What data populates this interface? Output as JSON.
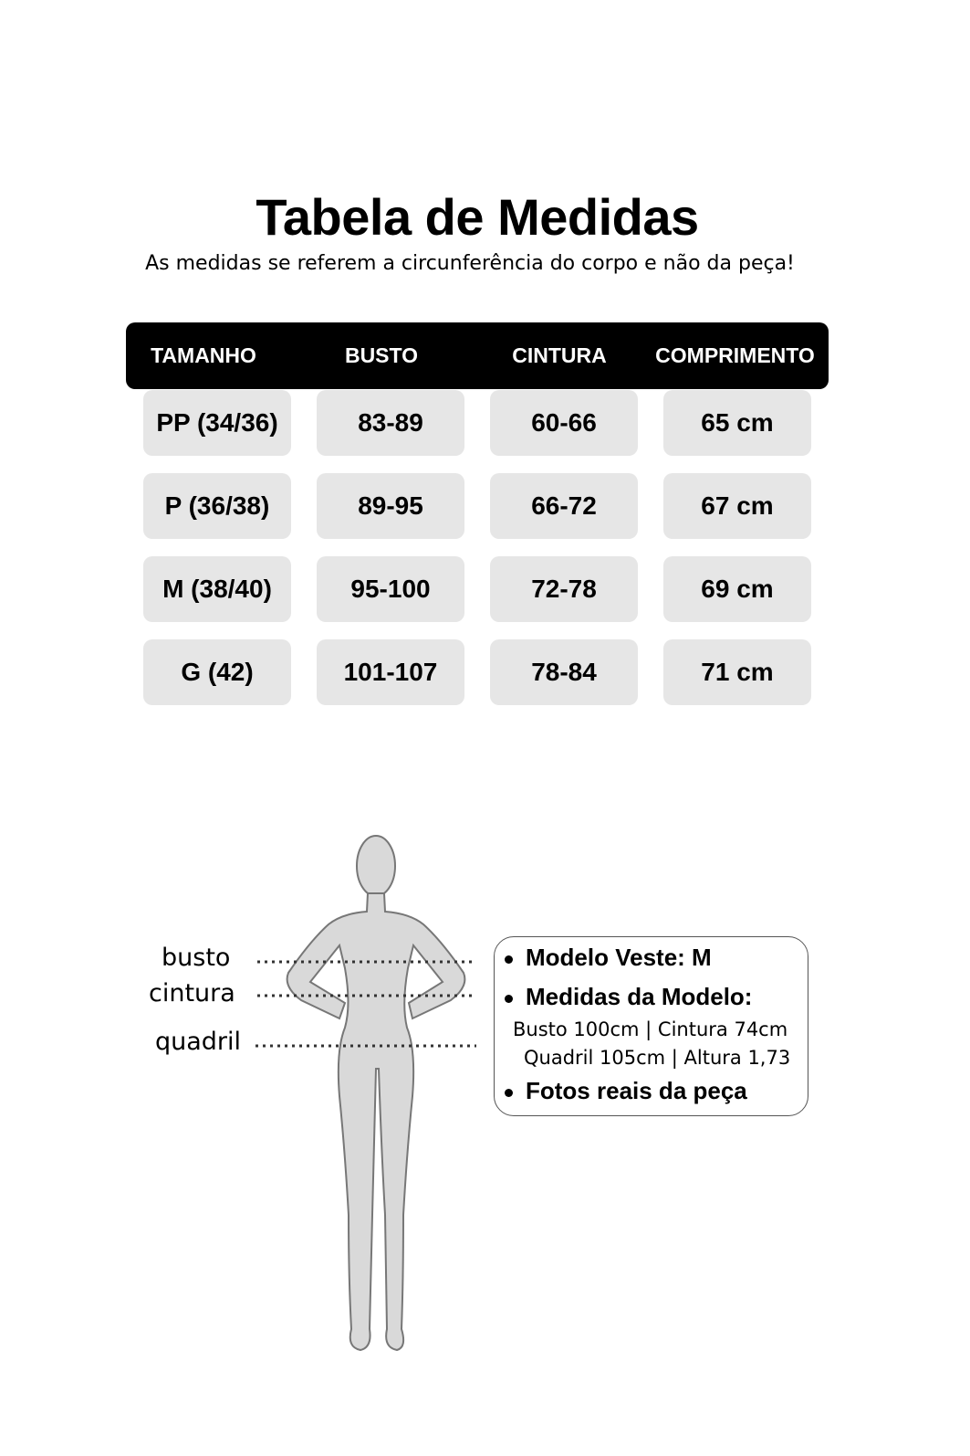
{
  "title": "Tabela de Medidas",
  "subtitle": "As medidas se referem a circunferência do corpo e não da peça!",
  "table": {
    "headers": [
      "TAMANHO",
      "BUSTO",
      "CINTURA",
      "COMPRIMENTO"
    ],
    "rows": [
      [
        "PP (34/36)",
        "83-89",
        "60-66",
        "65 cm"
      ],
      [
        "P (36/38)",
        "89-95",
        "66-72",
        "67 cm"
      ],
      [
        "M (38/40)",
        "95-100",
        "72-78",
        "69 cm"
      ],
      [
        "G (42)",
        "101-107",
        "78-84",
        "71 cm"
      ]
    ]
  },
  "figure": {
    "labels": [
      "busto",
      "cintura",
      "quadril"
    ]
  },
  "info": {
    "items": [
      "Modelo Veste:  M",
      "Medidas da Modelo:",
      "Fotos reais da peça"
    ],
    "measures": [
      "Busto 100cm | Cintura 74cm",
      "Quadril 105cm | Altura 1,73"
    ]
  },
  "colors": {
    "header_bg": "#000000",
    "cell_bg": "#e6e6e6",
    "figure_fill": "#d9d9d9"
  }
}
